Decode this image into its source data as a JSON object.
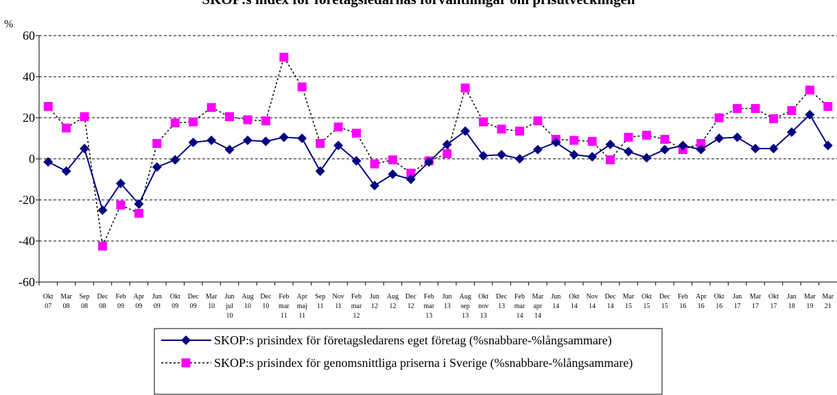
{
  "chart_data": {
    "type": "line",
    "title": "SKOP:s index för företagsledarnas förväntningar om prisutvecklingen",
    "y_label": "%",
    "categories": [
      "Okt 07",
      "Mar 08",
      "Sep 08",
      "Dec 08",
      "Feb 09",
      "Apr 09",
      "Jun 09",
      "Okt 09",
      "Dec 09",
      "Mar 10",
      "Jun jul 10",
      "Aug 10",
      "Dec 10",
      "Feb mar 11",
      "Apr maj 11",
      "Sep 11",
      "Nov 11",
      "Feb mar 12",
      "Jun 12",
      "Aug 12",
      "Dec 12",
      "Feb mar 13",
      "Jun 13",
      "Aug sep 13",
      "Okt nov 13",
      "Dec 13",
      "Feb mar 14",
      "Mar apr 14",
      "Jun 14",
      "Okt 14",
      "Nov 14",
      "Dec 14",
      "Mar 15",
      "Okt 15",
      "Dec 15",
      "Feb 16",
      "Apr 16",
      "Okt 16",
      "Jan 17",
      "Mar 17",
      "Okt 17",
      "Jan 18",
      "Mar 19",
      "Mar 21"
    ],
    "series": [
      {
        "name": "SKOP:s prisindex för företagsledarens eget företag (%snabbare-%långsammare)",
        "color": "#000080",
        "marker": "diamond",
        "dash": false,
        "values": [
          -1.5,
          -6,
          5,
          -25,
          -12,
          -22,
          -4,
          -0.5,
          8,
          9,
          4.5,
          9,
          8.5,
          10.5,
          10,
          -6,
          6.5,
          -1,
          -13,
          -7.5,
          -10,
          -1.5,
          7,
          13.5,
          1.5,
          2,
          0,
          4.5,
          8,
          2,
          1,
          7,
          3.5,
          0.5,
          4.5,
          6.5,
          4.5,
          10,
          10.5,
          5,
          5,
          13,
          21.5,
          6.5
        ]
      },
      {
        "name": "SKOP:s prisindex för genomsnittliga priserna i Sverige (%snabbare-%långsammare)",
        "color": "#ff00ff",
        "marker": "square",
        "dash": true,
        "values": [
          25.5,
          15,
          20.5,
          -42.5,
          -22.5,
          -26.5,
          7.5,
          17.5,
          18,
          25,
          20.5,
          19,
          18.5,
          49.5,
          35,
          7.5,
          15.5,
          12.5,
          -2.5,
          -0.5,
          -7,
          -1,
          2.5,
          34.5,
          18,
          14.5,
          13.5,
          18.5,
          9.5,
          9,
          8.5,
          -0.5,
          10.5,
          11.5,
          9.5,
          4.5,
          7.5,
          20,
          24.5,
          24.5,
          19.5,
          23.5,
          33.5,
          25.5
        ]
      }
    ],
    "ylim": [
      -60,
      60
    ],
    "yticks": [
      -60,
      -40,
      -20,
      0,
      20,
      40,
      60
    ],
    "grid": true,
    "legend": "bottom"
  }
}
